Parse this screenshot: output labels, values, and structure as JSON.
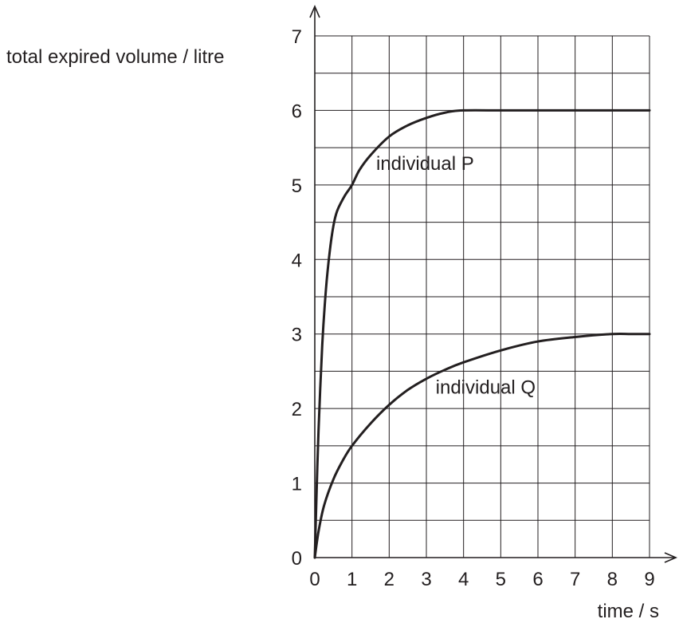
{
  "chart_data": {
    "type": "line",
    "xlabel": "time / s",
    "ylabel": "total expired volume / litre",
    "xlim": [
      0,
      9
    ],
    "ylim": [
      0,
      7
    ],
    "x_ticks": [
      "0",
      "1",
      "2",
      "3",
      "4",
      "5",
      "6",
      "7",
      "8",
      "9"
    ],
    "y_ticks": [
      "0",
      "1",
      "2",
      "3",
      "4",
      "5",
      "6",
      "7"
    ],
    "grid": {
      "x_step": 1,
      "y_step": 0.5
    },
    "series": [
      {
        "name": "individual P",
        "x": [
          0,
          0.05,
          0.1,
          0.2,
          0.3,
          0.4,
          0.5,
          0.6,
          0.8,
          1.0,
          1.2,
          1.5,
          2.0,
          2.5,
          3.0,
          3.5,
          4.0,
          5.0,
          6.0,
          7.0,
          8.0,
          9.0
        ],
        "values": [
          0,
          0.9,
          1.7,
          2.85,
          3.6,
          4.1,
          4.45,
          4.65,
          4.85,
          5.0,
          5.2,
          5.4,
          5.65,
          5.8,
          5.9,
          5.97,
          6.0,
          6.0,
          6.0,
          6.0,
          6.0,
          6.0
        ]
      },
      {
        "name": "individual Q",
        "x": [
          0,
          0.1,
          0.25,
          0.5,
          0.75,
          1.0,
          1.5,
          2.0,
          2.5,
          3.0,
          3.5,
          4.0,
          5.0,
          6.0,
          7.0,
          8.0,
          8.5,
          9.0
        ],
        "values": [
          0,
          0.35,
          0.7,
          1.05,
          1.3,
          1.5,
          1.8,
          2.05,
          2.25,
          2.4,
          2.52,
          2.62,
          2.78,
          2.9,
          2.96,
          3.0,
          3.0,
          3.0
        ]
      }
    ],
    "annotations": [
      {
        "text": "individual P",
        "x": 1.65,
        "y": 5.2
      },
      {
        "text": "individual Q",
        "x": 3.25,
        "y": 2.2
      }
    ]
  }
}
